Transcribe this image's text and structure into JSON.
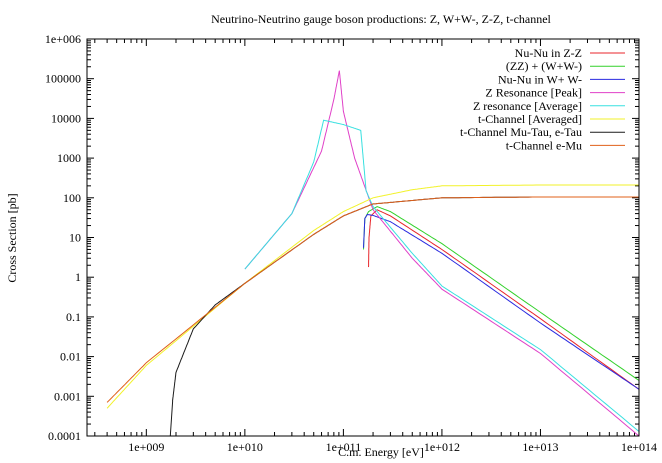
{
  "chart_data": {
    "type": "line",
    "title": "Neutrino-Neutrino gauge boson productions: Z, W+W-, Z-Z, t-channel",
    "xlabel": "C.m. Energy [eV]",
    "ylabel": "Cross Section [pb]",
    "xscale": "log",
    "yscale": "log",
    "xlim": [
      250000000.0,
      100000000000000.0
    ],
    "ylim": [
      0.0001,
      1000000.0
    ],
    "x_tick_values": [
      1000000000.0,
      10000000000.0,
      100000000000.0,
      1000000000000.0,
      10000000000000.0,
      100000000000000.0
    ],
    "x_tick_labels": [
      "1e+009",
      "1e+010",
      "1e+011",
      "1e+012",
      "1e+013",
      "1e+014"
    ],
    "y_tick_values": [
      0.0001,
      0.001,
      0.01,
      0.1,
      1,
      10,
      100,
      1000,
      10000,
      100000,
      1000000
    ],
    "y_tick_labels": [
      "0.0001",
      "0.001",
      "0.01",
      "0.1",
      "1",
      "10",
      "100",
      "1000",
      "10000",
      "100000",
      "1e+006"
    ],
    "grid": false,
    "legend_position": "top-right",
    "series": [
      {
        "name": "Nu-Nu in Z-Z",
        "color": "#e8262b",
        "points": [
          [
            180000000000.0,
            1.8
          ],
          [
            182000000000.0,
            10
          ],
          [
            190000000000.0,
            35
          ],
          [
            220000000000.0,
            50
          ],
          [
            300000000000.0,
            35
          ],
          [
            1000000000000.0,
            5
          ],
          [
            10000000000000.0,
            0.09
          ],
          [
            100000000000000.0,
            0.0015
          ]
        ]
      },
      {
        "name": "(ZZ) + (W+W-)",
        "color": "#33d12b",
        "points": [
          [
            160000000000.0,
            5
          ],
          [
            165000000000.0,
            30
          ],
          [
            180000000000.0,
            45
          ],
          [
            220000000000.0,
            60
          ],
          [
            300000000000.0,
            45
          ],
          [
            1000000000000.0,
            7
          ],
          [
            10000000000000.0,
            0.13
          ],
          [
            100000000000000.0,
            0.0025
          ]
        ]
      },
      {
        "name": "Nu-Nu in W+ W-",
        "color": "#2a2ae0",
        "points": [
          [
            160000000000.0,
            5.5
          ],
          [
            165000000000.0,
            30
          ],
          [
            175000000000.0,
            38
          ],
          [
            200000000000.0,
            36
          ],
          [
            300000000000.0,
            25
          ],
          [
            1000000000000.0,
            4
          ],
          [
            10000000000000.0,
            0.07
          ],
          [
            100000000000000.0,
            0.0015
          ]
        ]
      },
      {
        "name": "Z Resonance [Peak]",
        "color": "#e040c8",
        "points": [
          [
            10000000000.0,
            1.6
          ],
          [
            30000000000.0,
            40
          ],
          [
            60000000000.0,
            1500
          ],
          [
            80000000000.0,
            30000
          ],
          [
            91000000000.0,
            160000
          ],
          [
            100000000000.0,
            15000
          ],
          [
            130000000000.0,
            1000
          ],
          [
            200000000000.0,
            50
          ],
          [
            500000000000.0,
            3
          ],
          [
            1000000000000.0,
            0.5
          ],
          [
            10000000000000.0,
            0.012
          ],
          [
            100000000000000.0,
            0.0001
          ]
        ]
      },
      {
        "name": "Z resonance [Average]",
        "color": "#38e0e0",
        "points": [
          [
            10000000000.0,
            1.6
          ],
          [
            30000000000.0,
            40
          ],
          [
            50000000000.0,
            800
          ],
          [
            63000000000.0,
            9000
          ],
          [
            100000000000.0,
            7000
          ],
          [
            150000000000.0,
            5000
          ],
          [
            155000000000.0,
            2000
          ],
          [
            170000000000.0,
            150
          ],
          [
            200000000000.0,
            60
          ],
          [
            500000000000.0,
            4
          ],
          [
            1000000000000.0,
            0.6
          ],
          [
            10000000000000.0,
            0.015
          ],
          [
            100000000000000.0,
            0.00013
          ]
        ]
      },
      {
        "name": "t-Channel [Averaged]",
        "color": "#f2f22a",
        "points": [
          [
            400000000.0,
            0.0005
          ],
          [
            1000000000.0,
            0.006
          ],
          [
            10000000000.0,
            0.7
          ],
          [
            50000000000.0,
            15
          ],
          [
            100000000000.0,
            45
          ],
          [
            200000000000.0,
            100
          ],
          [
            500000000000.0,
            160
          ],
          [
            1000000000000.0,
            200
          ],
          [
            10000000000000.0,
            210
          ],
          [
            100000000000000.0,
            210
          ]
        ]
      },
      {
        "name": "t-Channel Mu-Tau, e-Tau",
        "color": "#1a1a1a",
        "points": [
          [
            1750000000.0,
            0.0001
          ],
          [
            1850000000.0,
            0.0008
          ],
          [
            2000000000.0,
            0.004
          ],
          [
            3000000000.0,
            0.05
          ],
          [
            5000000000.0,
            0.2
          ],
          [
            10000000000.0,
            0.7
          ],
          [
            50000000000.0,
            12
          ],
          [
            100000000000.0,
            35
          ],
          [
            200000000000.0,
            70
          ],
          [
            1000000000000.0,
            100
          ],
          [
            10000000000000.0,
            105
          ],
          [
            100000000000000.0,
            105
          ]
        ]
      },
      {
        "name": "t-Channel e-Mu",
        "color": "#e0601a",
        "points": [
          [
            400000000.0,
            0.0007
          ],
          [
            1000000000.0,
            0.007
          ],
          [
            10000000000.0,
            0.7
          ],
          [
            50000000000.0,
            12
          ],
          [
            100000000000.0,
            35
          ],
          [
            200000000000.0,
            70
          ],
          [
            1000000000000.0,
            100
          ],
          [
            10000000000000.0,
            105
          ],
          [
            100000000000000.0,
            105
          ]
        ]
      }
    ]
  }
}
